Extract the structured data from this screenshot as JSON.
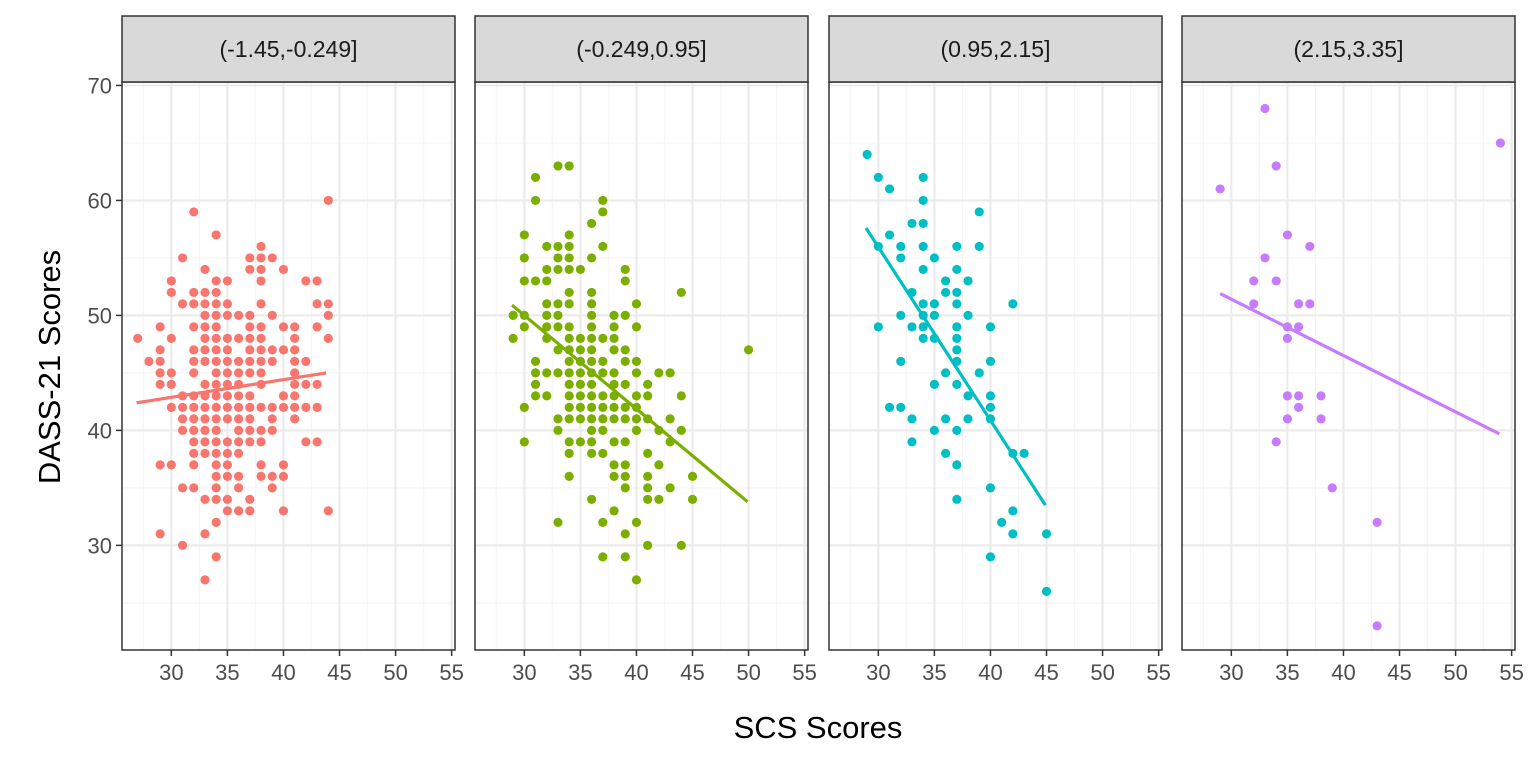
{
  "chart_data": {
    "type": "scatter",
    "xlabel": "SCS Scores",
    "ylabel": "DASS-21 Scores",
    "xlim": [
      25.6,
      55.3
    ],
    "ylim": [
      20.9,
      70.3
    ],
    "x_ticks": [
      30,
      35,
      40,
      45,
      50,
      55
    ],
    "y_ticks": [
      30,
      40,
      50,
      60,
      70
    ],
    "grid": true,
    "facets": [
      {
        "label": "(-1.45,-0.249]",
        "color": "#F8766D",
        "trend": [
          [
            26.9,
            42.4
          ],
          [
            43.8,
            45.0
          ]
        ],
        "rows": [
          {
            "y": 60,
            "x": [
              44
            ]
          },
          {
            "y": 59,
            "x": [
              32
            ]
          },
          {
            "y": 57,
            "x": [
              34
            ]
          },
          {
            "y": 56,
            "x": [
              38
            ]
          },
          {
            "y": 55,
            "x": [
              31,
              37,
              38,
              39
            ]
          },
          {
            "y": 54,
            "x": [
              33,
              37,
              38,
              40
            ]
          },
          {
            "y": 53,
            "x": [
              30,
              34,
              35,
              38,
              42,
              43
            ]
          },
          {
            "y": 52,
            "x": [
              30,
              32,
              33,
              34
            ]
          },
          {
            "y": 51,
            "x": [
              31,
              32,
              33,
              34,
              35,
              38,
              43,
              44
            ]
          },
          {
            "y": 50,
            "x": [
              33,
              34,
              35,
              36,
              37,
              39,
              44
            ]
          },
          {
            "y": 49,
            "x": [
              29,
              32,
              33,
              34,
              37,
              38,
              40,
              41,
              43
            ]
          },
          {
            "y": 48,
            "x": [
              27,
              30,
              33,
              34,
              35,
              36,
              37,
              38,
              41,
              44
            ]
          },
          {
            "y": 47,
            "x": [
              29,
              32,
              33,
              34,
              35,
              37,
              38,
              39,
              40,
              41
            ]
          },
          {
            "y": 46,
            "x": [
              28,
              29,
              32,
              33,
              34,
              35,
              36,
              37,
              38,
              39,
              41,
              42
            ]
          },
          {
            "y": 45,
            "x": [
              29,
              30,
              32,
              34,
              35,
              36,
              37,
              38,
              41
            ]
          },
          {
            "y": 44,
            "x": [
              29,
              30,
              33,
              34,
              35,
              36,
              38,
              41,
              42,
              43
            ]
          },
          {
            "y": 43,
            "x": [
              31,
              32,
              33,
              34,
              35,
              36,
              37,
              40,
              41
            ]
          },
          {
            "y": 42,
            "x": [
              30,
              31,
              32,
              33,
              34,
              35,
              36,
              37,
              38,
              39,
              40,
              41,
              42,
              43
            ]
          },
          {
            "y": 41,
            "x": [
              31,
              32,
              33,
              34,
              35,
              36,
              37,
              39,
              41
            ]
          },
          {
            "y": 40,
            "x": [
              31,
              32,
              33,
              34,
              36,
              37,
              38,
              39
            ]
          },
          {
            "y": 39,
            "x": [
              32,
              33,
              34,
              35,
              36,
              37,
              38,
              42,
              43
            ]
          },
          {
            "y": 38,
            "x": [
              32,
              33,
              34,
              35,
              36
            ]
          },
          {
            "y": 37,
            "x": [
              29,
              30,
              32,
              34,
              35,
              38,
              40
            ]
          },
          {
            "y": 36,
            "x": [
              34,
              35,
              36,
              38,
              39,
              40
            ]
          },
          {
            "y": 35,
            "x": [
              31,
              32,
              34,
              36,
              39
            ]
          },
          {
            "y": 34,
            "x": [
              33,
              34,
              35,
              37
            ]
          },
          {
            "y": 33,
            "x": [
              35,
              36,
              37,
              40,
              44
            ]
          },
          {
            "y": 32,
            "x": [
              34
            ]
          },
          {
            "y": 31,
            "x": [
              29,
              33
            ]
          },
          {
            "y": 30,
            "x": [
              31
            ]
          },
          {
            "y": 29,
            "x": [
              34
            ]
          },
          {
            "y": 27,
            "x": [
              33
            ]
          }
        ]
      },
      {
        "label": "(-0.249,0.95]",
        "color": "#7CAE00",
        "trend": [
          [
            28.9,
            50.9
          ],
          [
            49.9,
            33.8
          ]
        ],
        "rows": [
          {
            "y": 63,
            "x": [
              33,
              34
            ]
          },
          {
            "y": 62,
            "x": [
              31
            ]
          },
          {
            "y": 60,
            "x": [
              31,
              37
            ]
          },
          {
            "y": 59,
            "x": [
              37
            ]
          },
          {
            "y": 58,
            "x": [
              36
            ]
          },
          {
            "y": 57,
            "x": [
              30,
              34
            ]
          },
          {
            "y": 56,
            "x": [
              32,
              33,
              34,
              37
            ]
          },
          {
            "y": 55,
            "x": [
              30,
              33,
              34,
              36
            ]
          },
          {
            "y": 54,
            "x": [
              32,
              33,
              34,
              35,
              39
            ]
          },
          {
            "y": 53,
            "x": [
              30,
              31,
              32,
              39
            ]
          },
          {
            "y": 52,
            "x": [
              34,
              36,
              44
            ]
          },
          {
            "y": 51,
            "x": [
              32,
              33,
              34,
              36,
              40
            ]
          },
          {
            "y": 50,
            "x": [
              29,
              30,
              32,
              33,
              36,
              38,
              39
            ]
          },
          {
            "y": 49,
            "x": [
              30,
              32,
              33,
              34,
              36,
              38,
              40
            ]
          },
          {
            "y": 48,
            "x": [
              29,
              32,
              34,
              35,
              36,
              37,
              38
            ]
          },
          {
            "y": 47,
            "x": [
              33,
              34,
              35,
              36,
              38,
              39,
              50
            ]
          },
          {
            "y": 46,
            "x": [
              31,
              34,
              35,
              36,
              37,
              39,
              40
            ]
          },
          {
            "y": 45,
            "x": [
              31,
              32,
              33,
              34,
              35,
              36,
              37,
              38,
              40,
              42,
              43
            ]
          },
          {
            "y": 44,
            "x": [
              31,
              34,
              35,
              36,
              38,
              39,
              41
            ]
          },
          {
            "y": 43,
            "x": [
              31,
              32,
              34,
              35,
              36,
              37,
              38,
              40,
              41,
              44
            ]
          },
          {
            "y": 42,
            "x": [
              30,
              34,
              35,
              36,
              37,
              38,
              39,
              40
            ]
          },
          {
            "y": 41,
            "x": [
              33,
              34,
              35,
              36,
              37,
              38,
              39,
              40,
              41,
              43
            ]
          },
          {
            "y": 40,
            "x": [
              33,
              36,
              37,
              40,
              42,
              44
            ]
          },
          {
            "y": 39,
            "x": [
              30,
              34,
              35,
              36,
              38,
              39,
              43
            ]
          },
          {
            "y": 38,
            "x": [
              34,
              36,
              37,
              41
            ]
          },
          {
            "y": 37,
            "x": [
              38,
              39,
              42
            ]
          },
          {
            "y": 36,
            "x": [
              34,
              38,
              39,
              41,
              45
            ]
          },
          {
            "y": 35,
            "x": [
              39,
              41,
              43
            ]
          },
          {
            "y": 34,
            "x": [
              36,
              41,
              42,
              45
            ]
          },
          {
            "y": 33,
            "x": [
              38
            ]
          },
          {
            "y": 32,
            "x": [
              33,
              37,
              40
            ]
          },
          {
            "y": 31,
            "x": [
              39
            ]
          },
          {
            "y": 30,
            "x": [
              41,
              44
            ]
          },
          {
            "y": 29,
            "x": [
              37,
              39
            ]
          },
          {
            "y": 27,
            "x": [
              40
            ]
          }
        ]
      },
      {
        "label": "(0.95,2.15]",
        "color": "#00BFC4",
        "trend": [
          [
            28.9,
            57.6
          ],
          [
            44.9,
            33.5
          ]
        ],
        "rows": [
          {
            "y": 64,
            "x": [
              29
            ]
          },
          {
            "y": 62,
            "x": [
              30,
              34
            ]
          },
          {
            "y": 61,
            "x": [
              31
            ]
          },
          {
            "y": 60,
            "x": [
              34
            ]
          },
          {
            "y": 59,
            "x": [
              39
            ]
          },
          {
            "y": 58,
            "x": [
              33,
              34
            ]
          },
          {
            "y": 57,
            "x": [
              31
            ]
          },
          {
            "y": 56,
            "x": [
              30,
              32,
              34,
              37,
              39
            ]
          },
          {
            "y": 55,
            "x": [
              32,
              35
            ]
          },
          {
            "y": 54,
            "x": [
              34,
              37
            ]
          },
          {
            "y": 53,
            "x": [
              36,
              38
            ]
          },
          {
            "y": 52,
            "x": [
              33,
              36,
              37
            ]
          },
          {
            "y": 51,
            "x": [
              34,
              35,
              37,
              42
            ]
          },
          {
            "y": 50,
            "x": [
              32,
              34,
              35,
              38
            ]
          },
          {
            "y": 49,
            "x": [
              30,
              33,
              34,
              37,
              40
            ]
          },
          {
            "y": 48,
            "x": [
              34,
              35,
              37
            ]
          },
          {
            "y": 47,
            "x": [
              37
            ]
          },
          {
            "y": 46,
            "x": [
              32,
              37,
              40
            ]
          },
          {
            "y": 45,
            "x": [
              36,
              39
            ]
          },
          {
            "y": 44,
            "x": [
              35,
              37
            ]
          },
          {
            "y": 43,
            "x": [
              38,
              40
            ]
          },
          {
            "y": 42,
            "x": [
              31,
              32,
              40
            ]
          },
          {
            "y": 41,
            "x": [
              33,
              36,
              38,
              40
            ]
          },
          {
            "y": 40,
            "x": [
              35,
              37
            ]
          },
          {
            "y": 39,
            "x": [
              33
            ]
          },
          {
            "y": 38,
            "x": [
              36,
              42,
              43
            ]
          },
          {
            "y": 37,
            "x": [
              37
            ]
          },
          {
            "y": 35,
            "x": [
              40
            ]
          },
          {
            "y": 34,
            "x": [
              37
            ]
          },
          {
            "y": 33,
            "x": [
              42
            ]
          },
          {
            "y": 32,
            "x": [
              41
            ]
          },
          {
            "y": 31,
            "x": [
              42,
              45
            ]
          },
          {
            "y": 29,
            "x": [
              40
            ]
          },
          {
            "y": 26,
            "x": [
              45
            ]
          }
        ]
      },
      {
        "label": "(2.15,3.35]",
        "color": "#C77CFF",
        "trend": [
          [
            29.0,
            51.9
          ],
          [
            53.9,
            39.7
          ]
        ],
        "rows": [
          {
            "y": 68,
            "x": [
              33
            ]
          },
          {
            "y": 65,
            "x": [
              54
            ]
          },
          {
            "y": 63,
            "x": [
              34
            ]
          },
          {
            "y": 61,
            "x": [
              29
            ]
          },
          {
            "y": 57,
            "x": [
              35
            ]
          },
          {
            "y": 56,
            "x": [
              37
            ]
          },
          {
            "y": 55,
            "x": [
              33
            ]
          },
          {
            "y": 53,
            "x": [
              32,
              34
            ]
          },
          {
            "y": 51,
            "x": [
              32,
              36,
              37
            ]
          },
          {
            "y": 49,
            "x": [
              35,
              36
            ]
          },
          {
            "y": 48,
            "x": [
              35
            ]
          },
          {
            "y": 43,
            "x": [
              35,
              36,
              38
            ]
          },
          {
            "y": 42,
            "x": [
              36
            ]
          },
          {
            "y": 41,
            "x": [
              35,
              38
            ]
          },
          {
            "y": 39,
            "x": [
              34
            ]
          },
          {
            "y": 35,
            "x": [
              39
            ]
          },
          {
            "y": 32,
            "x": [
              43
            ]
          },
          {
            "y": 23,
            "x": [
              43
            ]
          }
        ]
      }
    ],
    "colors": {
      "strip_fill": "#D9D9D9",
      "border": "#333333",
      "grid_major": "#EBEBEB",
      "grid_minor": "#F5F5F5",
      "tick_text": "#4D4D4D"
    }
  }
}
